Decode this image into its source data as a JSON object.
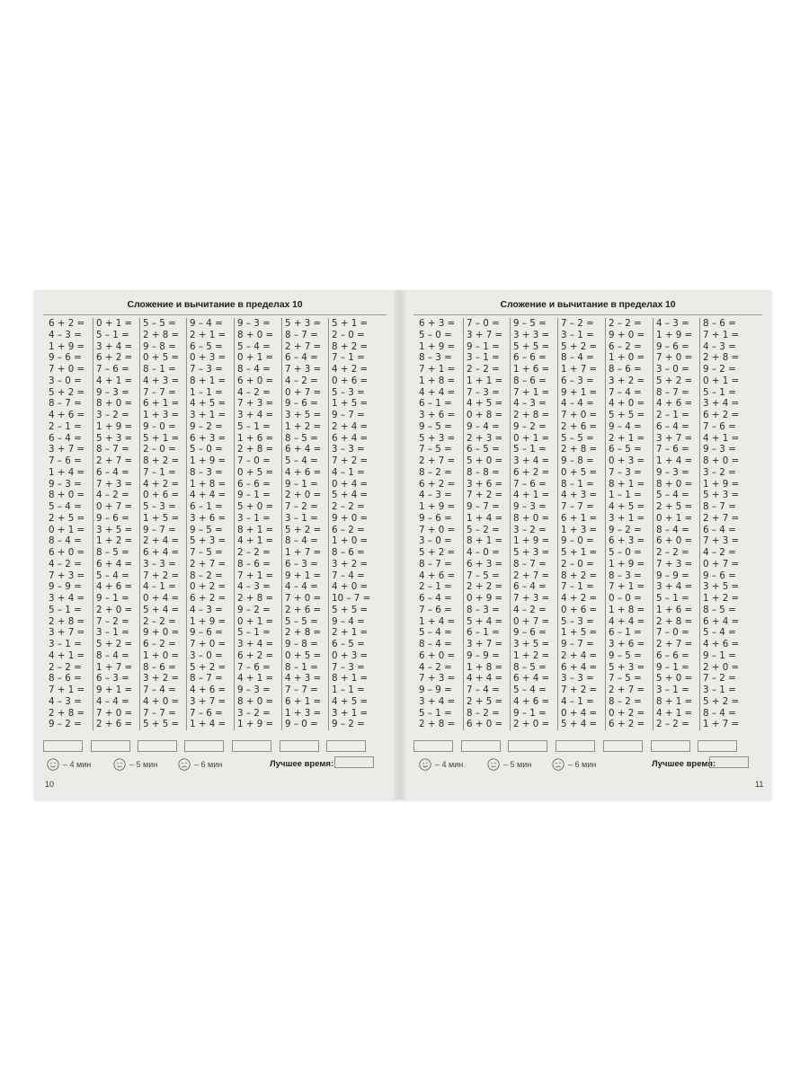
{
  "pages": [
    {
      "title": "Сложение и вычитание в пределах 10",
      "page_number": "10",
      "columns": [
        [
          "6 + 2 =",
          "4 – 3 =",
          "1 + 9 =",
          "9 – 6 =",
          "7 + 0 =",
          "3 – 0 =",
          "5 + 2 =",
          "8 – 7 =",
          "4 + 6 =",
          "2 – 1 =",
          "6 – 4 =",
          "3 + 7 =",
          "7 – 6 =",
          "1 + 4 =",
          "9 – 3 =",
          "8 + 0 =",
          "5 – 4 =",
          "2 + 5 =",
          "0 + 1 =",
          "8 – 4 =",
          "6 + 0 =",
          "4 – 2 =",
          "7 + 3 =",
          "9 – 9 =",
          "3 + 4 =",
          "5 – 1 =",
          "2 + 8 =",
          "3 + 7 =",
          "3 – 1 =",
          "4 + 1 =",
          "2 – 2 =",
          "8 – 6 =",
          "7 + 1 =",
          "4 – 3 =",
          "2 + 8 =",
          "9 – 2 ="
        ],
        [
          "0 + 1 =",
          "5 – 1 =",
          "3 + 4 =",
          "6 + 2 =",
          "7 – 6 =",
          "4 + 1 =",
          "9 – 3 =",
          "8 + 0 =",
          "3 – 2 =",
          "1 + 9 =",
          "5 + 3 =",
          "8 – 7 =",
          "2 + 7 =",
          "6 – 4 =",
          "7 + 3 =",
          "4 – 2 =",
          "0 + 7 =",
          "9 – 6 =",
          "3 + 5 =",
          "1 + 2 =",
          "8 – 5 =",
          "6 + 4 =",
          "5 – 4 =",
          "4 + 6 =",
          "9 – 1 =",
          "2 + 0 =",
          "7 – 2 =",
          "3 – 1 =",
          "5 + 2 =",
          "8 – 4 =",
          "1 + 7 =",
          "6 – 3 =",
          "9 + 1 =",
          "4 – 4 =",
          "7 + 0 =",
          "2 + 6 ="
        ],
        [
          "5 – 5 =",
          "2 + 8 =",
          "9 – 8 =",
          "0 + 5 =",
          "8 – 1 =",
          "4 + 3 =",
          "7 – 7 =",
          "6 + 1 =",
          "1 + 3 =",
          "9 – 0 =",
          "5 + 1 =",
          "2 – 0 =",
          "8 + 2 =",
          "7 – 1 =",
          "4 + 2 =",
          "0 + 6 =",
          "5 – 3 =",
          "1 + 5 =",
          "9 – 7 =",
          "2 + 4 =",
          "6 + 4 =",
          "3 – 3 =",
          "7 + 2 =",
          "4 – 1 =",
          "0 + 4 =",
          "5 + 4 =",
          "2 – 2 =",
          "9 + 0 =",
          "6 – 2 =",
          "1 + 0 =",
          "8 – 6 =",
          "3 + 2 =",
          "7 – 4 =",
          "4 + 0 =",
          "7 – 7 =",
          "5 + 5 ="
        ],
        [
          "9 – 4 =",
          "2 + 1 =",
          "6 – 5 =",
          "0 + 3 =",
          "7 – 3 =",
          "8 + 1 =",
          "1 – 1 =",
          "4 + 5 =",
          "3 + 1 =",
          "9 – 2 =",
          "6 + 3 =",
          "5 – 0 =",
          "1 + 9 =",
          "8 – 3 =",
          "1 + 8 =",
          "4 + 4 =",
          "6 – 1 =",
          "3 + 6 =",
          "9 – 5 =",
          "5 + 3 =",
          "7 – 5 =",
          "2 + 7 =",
          "8 – 2 =",
          "0 + 2 =",
          "6 + 2 =",
          "4 – 3 =",
          "1 + 9 =",
          "9 – 6 =",
          "7 + 0 =",
          "3 – 0 =",
          "5 + 2 =",
          "8 – 7 =",
          "4 + 6 =",
          "3 + 7 =",
          "7 – 6 =",
          "1 + 4 ="
        ],
        [
          "9 – 3 =",
          "8 + 0 =",
          "5 – 4 =",
          "0 + 1 =",
          "8 – 4 =",
          "6 + 0 =",
          "4 – 2 =",
          "7 + 3 =",
          "3 + 4 =",
          "5 – 1 =",
          "1 + 6 =",
          "2 + 8 =",
          "7 – 0 =",
          "0 + 5 =",
          "6 – 6 =",
          "9 – 1 =",
          "5 + 0 =",
          "3 – 1 =",
          "8 + 1 =",
          "4 + 1 =",
          "2 – 2 =",
          "8 – 6 =",
          "7 + 1 =",
          "4 – 3 =",
          "2 + 8 =",
          "9 – 2 =",
          "0 + 1 =",
          "5 – 1 =",
          "3 + 4 =",
          "6 + 2 =",
          "7 – 6 =",
          "4 + 1 =",
          "9 – 3 =",
          "8 + 0 =",
          "3 – 2 =",
          "1 + 9 ="
        ],
        [
          "5 + 3 =",
          "8 – 7 =",
          "2 + 7 =",
          "6 – 4 =",
          "7 + 3 =",
          "4 – 2 =",
          "0 + 7 =",
          "9 – 6 =",
          "3 + 5 =",
          "1 + 2 =",
          "8 – 5 =",
          "6 + 4 =",
          "5 – 4 =",
          "4 + 6 =",
          "9 – 1 =",
          "2 + 0 =",
          "7 – 2 =",
          "3 – 1 =",
          "5 + 2 =",
          "8 – 4 =",
          "1 + 7 =",
          "6 – 3 =",
          "9 + 1 =",
          "4 – 4 =",
          "7 + 0 =",
          "2 + 6 =",
          "5 – 5 =",
          "2 + 8 =",
          "9 – 8 =",
          "0 + 5 =",
          "8 – 1 =",
          "4 + 3 =",
          "7 – 7 =",
          "6 + 1 =",
          "1 + 3 =",
          "9 – 0 ="
        ],
        [
          "5 + 1 =",
          "2 – 0 =",
          "8 + 2 =",
          "7 – 1 =",
          "4 + 2 =",
          "0 + 6 =",
          "5 – 3 =",
          "1 + 5 =",
          "9 – 7 =",
          "2 + 4 =",
          "6 + 4 =",
          "3 – 3 =",
          "7 + 2 =",
          "4 – 1 =",
          "0 + 4 =",
          "5 + 4 =",
          "2 – 2 =",
          "9 + 0 =",
          "6 – 2 =",
          "1 + 0 =",
          "8 – 6 =",
          "3 + 2 =",
          "7 – 4 =",
          "4 + 0 =",
          "10 – 7 =",
          "5 + 5 =",
          "9 – 4 =",
          "2 + 1 =",
          "6 – 5 =",
          "0 + 3 =",
          "7 – 3 =",
          "8 + 1 =",
          "1 – 1 =",
          "4 + 5 =",
          "3 + 1 =",
          "9 – 2 ="
        ]
      ],
      "legend": [
        {
          "icon": "happy-face-icon",
          "label": "– 4 мин"
        },
        {
          "icon": "neutral-face-icon",
          "label": "– 5 мин"
        },
        {
          "icon": "sad-face-icon",
          "label": "– 6 мин"
        }
      ],
      "best_time_label": "Лучшее время:"
    },
    {
      "title": "Сложение и вычитание в пределах 10",
      "page_number": "11",
      "columns": [
        [
          "6 + 3 =",
          "5 – 0 =",
          "1 + 9 =",
          "8 – 3 =",
          "7 + 1 =",
          "1 + 8 =",
          "4 + 4 =",
          "6 – 1 =",
          "3 + 6 =",
          "9 – 5 =",
          "5 + 3 =",
          "7 – 5 =",
          "2 + 7 =",
          "8 – 2 =",
          "6 + 2 =",
          "4 – 3 =",
          "1 + 9 =",
          "9 – 6 =",
          "7 + 0 =",
          "3 – 0 =",
          "5 + 2 =",
          "8 – 7 =",
          "4 + 6 =",
          "2 – 1 =",
          "6 – 4 =",
          "7 – 6 =",
          "1 + 4 =",
          "5 – 4 =",
          "8 – 4 =",
          "6 + 0 =",
          "4 – 2 =",
          "7 + 3 =",
          "9 – 9 =",
          "3 + 4 =",
          "5 – 1 =",
          "2 + 8 ="
        ],
        [
          "7 – 0 =",
          "3 + 7 =",
          "9 – 1 =",
          "3 – 1 =",
          "2 – 2 =",
          "1 + 1 =",
          "7 – 3 =",
          "4 + 5 =",
          "0 + 8 =",
          "9 – 4 =",
          "2 + 3 =",
          "6 – 5 =",
          "5 + 0 =",
          "8 – 8 =",
          "3 + 6 =",
          "7 + 2 =",
          "9 – 7 =",
          "1 + 4 =",
          "5 – 2 =",
          "8 + 1 =",
          "4 – 0 =",
          "6 + 3 =",
          "7 – 5 =",
          "2 + 2 =",
          "0 + 9 =",
          "8 – 3 =",
          "5 + 4 =",
          "6 – 1 =",
          "3 + 7 =",
          "9 – 9 =",
          "1 + 8 =",
          "4 + 4 =",
          "7 – 4 =",
          "2 + 5 =",
          "8 – 2 =",
          "6 + 0 ="
        ],
        [
          "9 – 5 =",
          "3 + 3 =",
          "5 + 5 =",
          "6 – 6 =",
          "1 + 6 =",
          "8 – 6 =",
          "7 + 1 =",
          "4 – 3 =",
          "2 + 8 =",
          "9 – 2 =",
          "0 + 1 =",
          "5 – 1 =",
          "3 + 4 =",
          "6 + 2 =",
          "7 – 6 =",
          "4 + 1 =",
          "9 – 3 =",
          "8 + 0 =",
          "3 – 2 =",
          "1 + 9 =",
          "5 + 3 =",
          "8 – 7 =",
          "2 + 7 =",
          "6 – 4 =",
          "7 + 3 =",
          "4 – 2 =",
          "0 + 7 =",
          "9 – 6 =",
          "3 + 5 =",
          "1 + 2 =",
          "8 – 5 =",
          "6 + 4 =",
          "5 – 4 =",
          "4 + 6 =",
          "9 – 1 =",
          "2 + 0 ="
        ],
        [
          "7 – 2 =",
          "3 – 1 =",
          "5 + 2 =",
          "8 – 4 =",
          "1 + 7 =",
          "6 – 3 =",
          "9 + 1 =",
          "4 – 4 =",
          "7 + 0 =",
          "2 + 6 =",
          "5 – 5 =",
          "2 + 8 =",
          "9 – 8 =",
          "0 + 5 =",
          "8 – 1 =",
          "4 + 3 =",
          "7 – 7 =",
          "6 + 1 =",
          "1 + 3 =",
          "9 – 0 =",
          "5 + 1 =",
          "2 – 0 =",
          "8 + 2 =",
          "7 – 1 =",
          "4 + 2 =",
          "0 + 6 =",
          "5 – 3 =",
          "1 + 5 =",
          "9 – 7 =",
          "2 + 4 =",
          "6 + 4 =",
          "3 – 3 =",
          "7 + 2 =",
          "4 – 1 =",
          "0 + 4 =",
          "5 + 4 ="
        ],
        [
          "2 – 2 =",
          "9 + 0 =",
          "6 – 2 =",
          "1 + 0 =",
          "8 – 6 =",
          "3 + 2 =",
          "7 – 4 =",
          "4 + 0 =",
          "5 + 5 =",
          "9 – 4 =",
          "2 + 1 =",
          "6 – 5 =",
          "0 + 3 =",
          "7 – 3 =",
          "8 + 1 =",
          "1 – 1 =",
          "4 + 5 =",
          "3 + 1 =",
          "9 – 2 =",
          "6 + 3 =",
          "5 – 0 =",
          "1 + 9 =",
          "8 – 3 =",
          "7 + 1 =",
          "0 – 0 =",
          "1 + 8 =",
          "4 + 4 =",
          "6 – 1 =",
          "3 + 6 =",
          "9 – 5 =",
          "5 + 3 =",
          "7 – 5 =",
          "2 + 7 =",
          "8 – 2 =",
          "0 + 2 =",
          "6 + 2 ="
        ],
        [
          "4 – 3 =",
          "1 + 9 =",
          "9 – 6 =",
          "7 + 0 =",
          "3 – 0 =",
          "5 + 2 =",
          "8 – 7 =",
          "4 + 6 =",
          "2 – 1 =",
          "6 – 4 =",
          "3 + 7 =",
          "7 – 6 =",
          "1 + 4 =",
          "9 – 3 =",
          "8 + 0 =",
          "5 – 4 =",
          "2 + 5 =",
          "0 + 1 =",
          "8 – 4 =",
          "6 + 0 =",
          "2 – 2 =",
          "7 + 3 =",
          "9 – 9 =",
          "3 + 4 =",
          "5 – 1 =",
          "1 + 6 =",
          "2 + 8 =",
          "7 – 0 =",
          "2 + 7 =",
          "6 – 6 =",
          "9 – 1 =",
          "5 + 0 =",
          "3 – 1 =",
          "8 + 1 =",
          "4 + 1 =",
          "2 – 2 ="
        ],
        [
          "8 – 6 =",
          "7 + 1 =",
          "4 – 3 =",
          "2 + 8 =",
          "9 – 2 =",
          "0 + 1 =",
          "5 – 1 =",
          "3 + 4 =",
          "6 + 2 =",
          "7 – 6 =",
          "4 + 1 =",
          "9 – 3 =",
          "8 + 0 =",
          "3 – 2 =",
          "1 + 9 =",
          "5 + 3 =",
          "8 – 7 =",
          "2 + 7 =",
          "6 – 4 =",
          "7 + 3 =",
          "4 – 2 =",
          "0 + 7 =",
          "9 – 6 =",
          "3 + 5 =",
          "1 + 2 =",
          "8 – 5 =",
          "6 + 4 =",
          "5 – 4 =",
          "4 + 6 =",
          "9 – 1 =",
          "2 + 0 =",
          "7 – 2 =",
          "3 – 1 =",
          "5 + 2 =",
          "8 – 4 =",
          "1 + 7 ="
        ]
      ],
      "legend": [
        {
          "icon": "happy-face-icon",
          "label": "– 4 мин"
        },
        {
          "icon": "neutral-face-icon",
          "label": "– 5 мин"
        },
        {
          "icon": "sad-face-icon",
          "label": "– 6 мин"
        }
      ],
      "best_time_label": "Лучшее время:"
    }
  ]
}
